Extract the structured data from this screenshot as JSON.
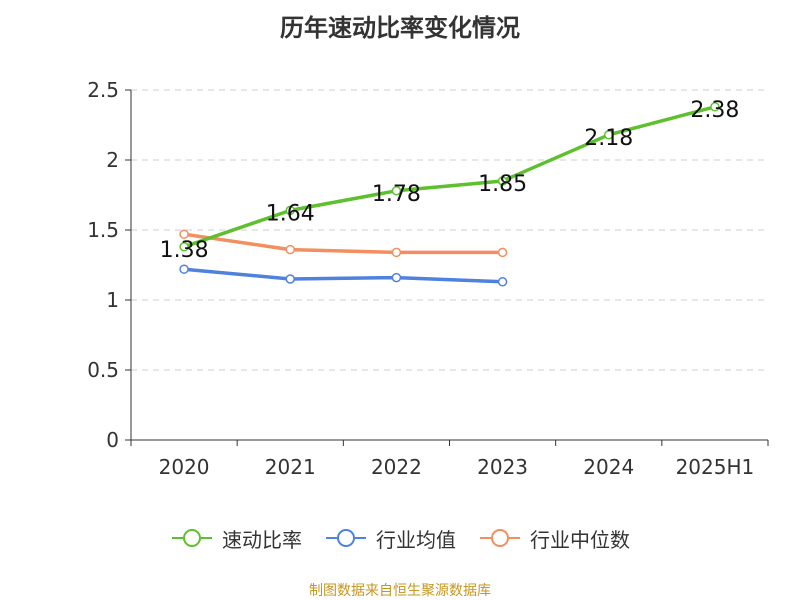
{
  "chart_data": {
    "type": "line",
    "title": "历年速动比率变化情况",
    "categories": [
      "2020",
      "2021",
      "2022",
      "2023",
      "2024",
      "2025H1"
    ],
    "ylim": [
      0,
      2.5
    ],
    "yticks": [
      "0",
      "0.5",
      "1",
      "1.5",
      "2",
      "2.5"
    ],
    "grid": true,
    "legend_position": "bottom",
    "series": [
      {
        "name": "速动比率",
        "color": "#5ec02c",
        "values": [
          1.38,
          1.64,
          1.78,
          1.85,
          2.18,
          2.38
        ],
        "labels": [
          "1.38",
          "1.64",
          "1.78",
          "1.85",
          "2.18",
          "2.38"
        ]
      },
      {
        "name": "行业均值",
        "color": "#4f81df",
        "values": [
          1.22,
          1.15,
          1.16,
          1.13,
          null,
          null
        ]
      },
      {
        "name": "行业中位数",
        "color": "#f28e5f",
        "values": [
          1.47,
          1.36,
          1.34,
          1.34,
          null,
          null
        ]
      }
    ]
  },
  "footer": {
    "source": "制图数据来自恒生聚源数据库",
    "source_color": "#c8961e"
  }
}
